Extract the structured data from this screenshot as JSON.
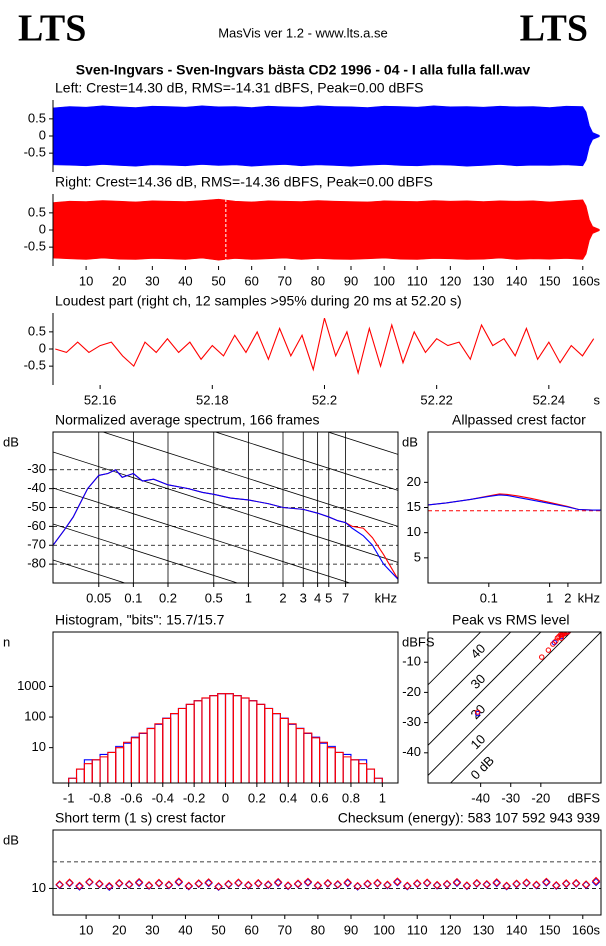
{
  "header": {
    "logo_left": "LTS",
    "app": "MasVis ver 1.2 - www.lts.a.se",
    "logo_right": "LTS",
    "file_title": "Sven-Ingvars - Sven-Ingvars bästa CD2 1996 - 04 - I alla fulla fall.wav"
  },
  "chart_data": [
    {
      "type": "band",
      "title": "Left: Crest=14.30 dB, RMS=-14.31 dBFS, Peak=0.00 dBFS",
      "color": "#0000ff",
      "x": [
        0,
        5,
        10,
        15,
        20,
        25,
        30,
        35,
        40,
        45,
        50,
        55,
        60,
        65,
        70,
        75,
        80,
        85,
        90,
        95,
        100,
        105,
        110,
        115,
        120,
        125,
        130,
        135,
        140,
        145,
        150,
        155,
        160,
        161,
        162,
        163,
        165
      ],
      "upper": [
        0.82,
        0.86,
        0.84,
        0.88,
        0.85,
        0.83,
        0.87,
        0.86,
        0.84,
        0.88,
        0.85,
        0.86,
        0.83,
        0.87,
        0.85,
        0.84,
        0.88,
        0.86,
        0.85,
        0.83,
        0.87,
        0.86,
        0.84,
        0.88,
        0.85,
        0.86,
        0.84,
        0.87,
        0.85,
        0.86,
        0.83,
        0.87,
        0.86,
        0.7,
        0.3,
        0.1,
        0.02
      ],
      "lower": [
        -0.84,
        -0.85,
        -0.87,
        -0.83,
        -0.86,
        -0.88,
        -0.84,
        -0.85,
        -0.87,
        -0.83,
        -0.86,
        -0.84,
        -0.88,
        -0.85,
        -0.83,
        -0.87,
        -0.84,
        -0.86,
        -0.88,
        -0.85,
        -0.83,
        -0.86,
        -0.87,
        -0.84,
        -0.85,
        -0.88,
        -0.86,
        -0.83,
        -0.87,
        -0.85,
        -0.86,
        -0.84,
        -0.87,
        -0.7,
        -0.3,
        -0.1,
        -0.02
      ],
      "xlim": [
        0,
        165.5
      ],
      "ylim": [
        -1.05,
        1.05
      ],
      "yticks": [
        0.5,
        0,
        -0.5
      ]
    },
    {
      "type": "band",
      "title": "Right: Crest=14.36 dB, RMS=-14.36 dBFS, Peak=0.00 dBFS",
      "color": "#ff0000",
      "marker_x": 52.2,
      "x": [
        0,
        5,
        10,
        15,
        20,
        25,
        30,
        35,
        40,
        45,
        50,
        55,
        60,
        65,
        70,
        75,
        80,
        85,
        90,
        95,
        100,
        105,
        110,
        115,
        120,
        125,
        130,
        135,
        140,
        145,
        150,
        155,
        160,
        161,
        162,
        163,
        165
      ],
      "upper": [
        0.8,
        0.84,
        0.83,
        0.86,
        0.84,
        0.82,
        0.85,
        0.84,
        0.83,
        0.86,
        0.9,
        0.84,
        0.82,
        0.85,
        0.84,
        0.83,
        0.86,
        0.84,
        0.83,
        0.82,
        0.85,
        0.84,
        0.83,
        0.86,
        0.84,
        0.85,
        0.83,
        0.85,
        0.84,
        0.85,
        0.82,
        0.85,
        0.88,
        0.7,
        0.3,
        0.1,
        0.02
      ],
      "lower": [
        -0.82,
        -0.84,
        -0.86,
        -0.82,
        -0.85,
        -0.86,
        -0.83,
        -0.84,
        -0.86,
        -0.82,
        -0.88,
        -0.83,
        -0.86,
        -0.84,
        -0.82,
        -0.86,
        -0.83,
        -0.85,
        -0.86,
        -0.84,
        -0.82,
        -0.85,
        -0.86,
        -0.83,
        -0.84,
        -0.86,
        -0.85,
        -0.82,
        -0.86,
        -0.84,
        -0.85,
        -0.83,
        -0.86,
        -0.7,
        -0.3,
        -0.1,
        -0.02
      ],
      "xlim": [
        0,
        165.5
      ],
      "ylim": [
        -1.05,
        1.05
      ],
      "yticks": [
        0.5,
        0,
        -0.5
      ],
      "xticks": [
        10,
        20,
        30,
        40,
        50,
        60,
        70,
        80,
        90,
        100,
        110,
        120,
        130,
        140,
        150,
        160
      ],
      "x_unit": "s"
    },
    {
      "type": "line",
      "title": "Loudest part (right ch, 12 samples >95% during 20 ms at 52.20 s)",
      "series": [
        {
          "color": "#ff0000",
          "x": [
            52.152,
            52.154,
            52.156,
            52.158,
            52.16,
            52.162,
            52.164,
            52.166,
            52.168,
            52.17,
            52.172,
            52.174,
            52.176,
            52.178,
            52.18,
            52.182,
            52.184,
            52.186,
            52.188,
            52.19,
            52.192,
            52.194,
            52.196,
            52.198,
            52.2,
            52.202,
            52.204,
            52.206,
            52.208,
            52.21,
            52.212,
            52.214,
            52.216,
            52.218,
            52.22,
            52.222,
            52.224,
            52.226,
            52.228,
            52.23,
            52.232,
            52.234,
            52.236,
            52.238,
            52.24,
            52.242,
            52.244,
            52.246,
            52.248
          ],
          "values": [
            0.0,
            -0.1,
            0.2,
            -0.1,
            0.1,
            0.2,
            -0.2,
            -0.5,
            0.2,
            -0.1,
            0.3,
            -0.1,
            0.2,
            -0.3,
            0.1,
            -0.2,
            0.4,
            -0.1,
            0.5,
            -0.3,
            0.6,
            -0.2,
            0.4,
            -0.6,
            0.9,
            -0.2,
            0.5,
            -0.7,
            0.6,
            -0.5,
            0.7,
            -0.4,
            0.5,
            -0.1,
            0.3,
            0.1,
            0.2,
            -0.3,
            0.7,
            0.1,
            0.3,
            -0.2,
            0.6,
            -0.3,
            0.2,
            -0.4,
            0.1,
            -0.2,
            0.3
          ]
        }
      ],
      "xlim": [
        52.1516,
        52.2493
      ],
      "ylim": [
        -1.05,
        1.05
      ],
      "yticks": [
        0.5,
        0,
        -0.5
      ],
      "xticks": [
        52.16,
        52.18,
        52.2,
        52.22,
        52.24
      ],
      "x_unit": "s"
    },
    {
      "type": "line",
      "title": "Normalized average spectrum, 166 frames",
      "y_label": "dB",
      "x_unit": "kHz",
      "xlog": true,
      "grid": true,
      "series": [
        {
          "color": "#ff0000",
          "x": [
            0.02,
            0.025,
            0.03,
            0.04,
            0.05,
            0.06,
            0.07,
            0.08,
            0.1,
            0.12,
            0.15,
            0.2,
            0.3,
            0.4,
            0.5,
            0.7,
            1,
            1.5,
            2,
            3,
            4,
            5,
            6,
            7,
            8,
            10,
            12,
            15,
            20
          ],
          "values": [
            -70,
            -62,
            -55,
            -40,
            -33,
            -32,
            -30,
            -34,
            -32,
            -36,
            -35,
            -38,
            -40,
            -42,
            -43,
            -45,
            -46,
            -48,
            -50,
            -51,
            -53,
            -55,
            -57,
            -58,
            -60,
            -61,
            -66,
            -75,
            -88
          ]
        },
        {
          "color": "#0000ff",
          "x": [
            0.02,
            0.025,
            0.03,
            0.04,
            0.05,
            0.06,
            0.07,
            0.08,
            0.1,
            0.12,
            0.15,
            0.2,
            0.3,
            0.4,
            0.5,
            0.7,
            1,
            1.5,
            2,
            3,
            4,
            5,
            6,
            7,
            8,
            10,
            12,
            15,
            20
          ],
          "values": [
            -70,
            -62,
            -55,
            -40,
            -33,
            -32,
            -30,
            -34,
            -32,
            -36,
            -35,
            -38,
            -40,
            -42,
            -43,
            -45,
            -46,
            -48,
            -50,
            -51,
            -53,
            -55,
            -57,
            -58,
            -61,
            -65,
            -70,
            -80,
            -88
          ]
        }
      ],
      "xlim": [
        0.02,
        20
      ],
      "ylim": [
        -90,
        -10
      ],
      "yticks": [
        -30,
        -40,
        -50,
        -60,
        -70,
        -80
      ],
      "xticks": [
        0.05,
        0.1,
        0.2,
        0.5,
        1,
        2,
        3,
        4,
        5,
        7
      ]
    },
    {
      "type": "line",
      "title": "Allpassed crest factor",
      "y_label": "dB",
      "x_unit": "kHz",
      "xlog": true,
      "reference_y": 14.36,
      "series": [
        {
          "color": "#ff0000",
          "x": [
            0.01,
            0.02,
            0.05,
            0.1,
            0.15,
            0.2,
            0.3,
            0.5,
            1,
            2,
            3,
            5,
            7
          ],
          "values": [
            15.5,
            15.9,
            16.6,
            17.3,
            17.7,
            17.6,
            17.3,
            16.8,
            16.0,
            15.2,
            14.6,
            14.5,
            14.5
          ]
        },
        {
          "color": "#0000ff",
          "x": [
            0.01,
            0.02,
            0.05,
            0.1,
            0.15,
            0.2,
            0.3,
            0.5,
            1,
            2,
            3,
            5,
            7
          ],
          "values": [
            15.5,
            15.9,
            16.6,
            17.2,
            17.5,
            17.4,
            17.0,
            16.5,
            15.8,
            15.1,
            14.6,
            14.5,
            14.5
          ]
        }
      ],
      "xlim": [
        0.01,
        7
      ],
      "ylim": [
        0,
        30
      ],
      "yticks": [
        20,
        15,
        10,
        5
      ],
      "xticks": [
        0.1,
        1,
        2
      ]
    },
    {
      "type": "histogram",
      "title": "Histogram, \"bits\": 15.7/15.7",
      "y_label": "n",
      "ylog": true,
      "bins": [
        -1,
        -0.95,
        -0.9,
        -0.85,
        -0.8,
        -0.75,
        -0.7,
        -0.65,
        -0.6,
        -0.55,
        -0.5,
        -0.45,
        -0.4,
        -0.35,
        -0.3,
        -0.25,
        -0.2,
        -0.15,
        -0.1,
        -0.05,
        0,
        0.05,
        0.1,
        0.15,
        0.2,
        0.25,
        0.3,
        0.35,
        0.4,
        0.45,
        0.5,
        0.55,
        0.6,
        0.65,
        0.7,
        0.75,
        0.8,
        0.85,
        0.9,
        0.95,
        1
      ],
      "series": [
        {
          "color": "#0000ff",
          "values": [
            1,
            2,
            4,
            4,
            6,
            7,
            11,
            14,
            22,
            29,
            43,
            58,
            92,
            128,
            192,
            258,
            342,
            418,
            502,
            578,
            578,
            502,
            418,
            342,
            258,
            192,
            128,
            92,
            58,
            43,
            29,
            22,
            14,
            11,
            7,
            6,
            4,
            4,
            2,
            1
          ]
        },
        {
          "color": "#ff0000",
          "values": [
            1,
            2,
            3,
            4,
            5,
            7,
            10,
            15,
            21,
            30,
            42,
            60,
            90,
            130,
            190,
            260,
            340,
            420,
            500,
            580,
            580,
            500,
            420,
            340,
            260,
            190,
            130,
            90,
            60,
            42,
            30,
            21,
            15,
            10,
            7,
            5,
            4,
            3,
            2,
            1
          ]
        }
      ],
      "xlim": [
        -1.1,
        1.1
      ],
      "ylim": [
        0.7,
        60000
      ],
      "yticks": [
        10,
        100,
        1000
      ],
      "xticks": [
        -1,
        -0.8,
        -0.6,
        -0.4,
        -0.2,
        0,
        0.2,
        0.4,
        0.6,
        0.8,
        1
      ]
    },
    {
      "type": "scatter",
      "title": "Peak vs RMS level",
      "y_label": "dBFS",
      "x_unit": "dBFS",
      "crest_lines": [
        {
          "value": 0,
          "label": "0 dB"
        },
        10,
        20,
        30,
        40
      ],
      "series": [
        {
          "color": "#0000ff",
          "x": [
            -41,
            -15.5,
            -13.2,
            -12.0,
            -11.2
          ],
          "values": [
            -27,
            -3.5,
            -1.5,
            -0.5,
            0
          ]
        },
        {
          "color": "#ff0000",
          "x": [
            -41,
            -19.7,
            -17.5,
            -16,
            -15,
            -14.5,
            -14,
            -13.5,
            -13,
            -12.5,
            -12,
            -11.5,
            -11,
            -13.2,
            -12.8
          ],
          "values": [
            -26.5,
            -8.3,
            -6,
            -4,
            -3,
            -2,
            -1.5,
            -1,
            -1,
            -0.5,
            -0.5,
            0,
            0,
            -2,
            -1
          ]
        }
      ],
      "xlim": [
        -57.5,
        0
      ],
      "ylim": [
        -50,
        0
      ],
      "yticks": [
        -10,
        -20,
        -30,
        -40
      ],
      "xticks": [
        -40,
        -30,
        -20
      ]
    },
    {
      "type": "scatter",
      "marker": "diamond",
      "title": "Short term (1 s) crest factor",
      "checksum": "Checksum (energy):  583 107 592 943 939",
      "y_label": "dB",
      "x_unit": "s",
      "dashed_y": [
        10,
        20
      ],
      "series": [
        {
          "color": "#0000ff",
          "x": [
            2,
            5,
            8,
            11,
            14,
            17,
            20,
            23,
            26,
            29,
            32,
            35,
            38,
            41,
            44,
            47,
            50,
            53,
            56,
            59,
            62,
            65,
            68,
            71,
            74,
            77,
            80,
            83,
            86,
            89,
            92,
            95,
            98,
            101,
            104,
            107,
            110,
            113,
            116,
            119,
            122,
            125,
            128,
            131,
            134,
            137,
            140,
            143,
            146,
            149,
            152,
            155,
            158,
            161,
            164
          ],
          "values": [
            11.3,
            12.0,
            10.7,
            12.3,
            11.6,
            10.6,
            11.8,
            11.4,
            12.1,
            11.0,
            11.9,
            11.2,
            12.3,
            10.8,
            11.7,
            12.0,
            10.6,
            11.5,
            12.0,
            11.1,
            11.8,
            11.3,
            12.1,
            10.9,
            11.6,
            12.2,
            11.0,
            11.8,
            11.4,
            12.0,
            10.7,
            11.6,
            11.9,
            11.2,
            12.3,
            10.8,
            11.7,
            12.0,
            11.1,
            11.5,
            12.1,
            10.9,
            11.8,
            11.4,
            12.0,
            10.8,
            11.6,
            12.0,
            11.2,
            12.2,
            11.0,
            11.7,
            11.8,
            11.3,
            12.4
          ]
        },
        {
          "color": "#ff0000",
          "x": [
            2,
            5,
            8,
            11,
            14,
            17,
            20,
            23,
            26,
            29,
            32,
            35,
            38,
            41,
            44,
            47,
            50,
            53,
            56,
            59,
            62,
            65,
            68,
            71,
            74,
            77,
            80,
            83,
            86,
            89,
            92,
            95,
            98,
            101,
            104,
            107,
            110,
            113,
            116,
            119,
            122,
            125,
            128,
            131,
            134,
            137,
            140,
            143,
            146,
            149,
            152,
            155,
            158,
            161,
            164
          ],
          "values": [
            11.5,
            12.2,
            11.0,
            12.5,
            11.8,
            10.9,
            12.0,
            11.6,
            12.4,
            11.2,
            12.1,
            11.4,
            12.6,
            11.0,
            11.9,
            12.3,
            10.8,
            11.7,
            12.2,
            11.3,
            12.0,
            11.5,
            12.4,
            11.1,
            11.8,
            12.5,
            11.2,
            12.0,
            11.6,
            12.3,
            10.9,
            11.8,
            12.1,
            11.4,
            12.6,
            11.0,
            11.9,
            12.2,
            11.3,
            11.7,
            12.4,
            11.1,
            12.0,
            11.6,
            12.3,
            11.0,
            11.8,
            12.2,
            11.4,
            12.5,
            11.2,
            11.9,
            12.0,
            11.5,
            12.8
          ]
        }
      ],
      "xlim": [
        0,
        165.5
      ],
      "ylim": [
        0,
        32
      ],
      "yticks": [
        10
      ],
      "xticks": [
        10,
        20,
        30,
        40,
        50,
        60,
        70,
        80,
        90,
        100,
        110,
        120,
        130,
        140,
        150,
        160
      ]
    }
  ]
}
